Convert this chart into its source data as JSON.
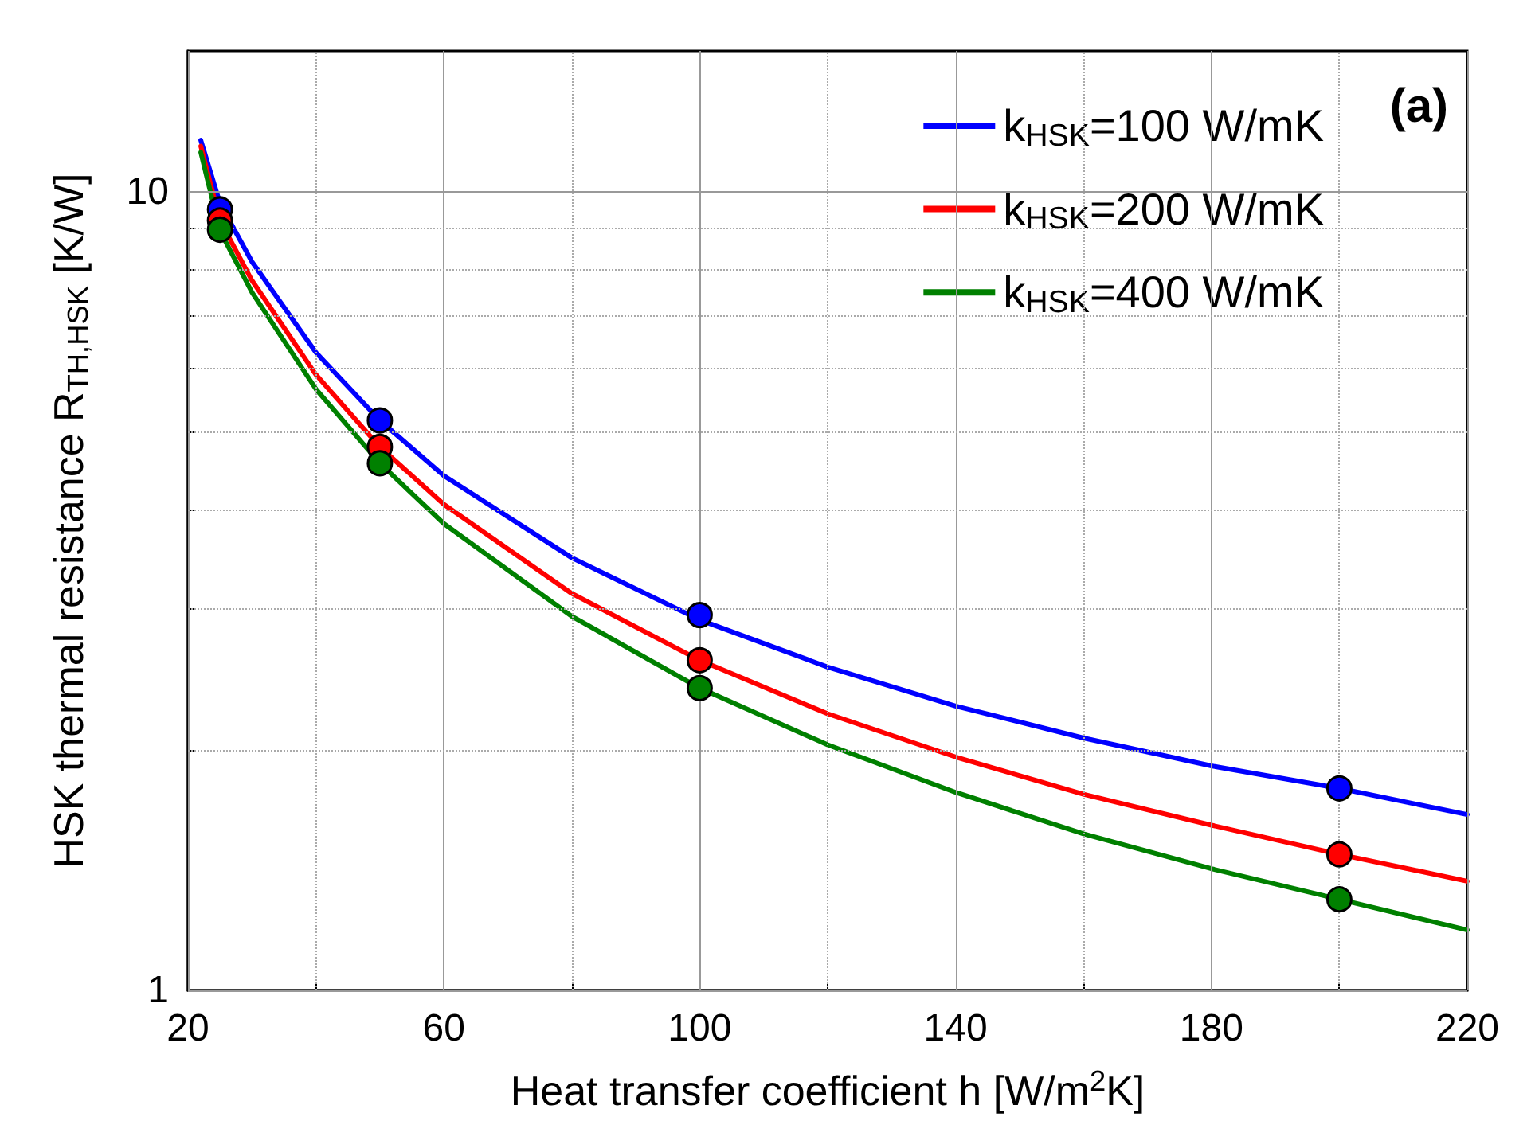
{
  "chart_data": {
    "type": "line",
    "xlabel": "Heat transfer coefficient h [W/m$^{2}$K]",
    "ylabel": "HSK thermal resistance R$_{TH,HSK}$ [K/W]",
    "annotations": [
      "(a)"
    ],
    "log": "y",
    "xlim": [
      20,
      220
    ],
    "xticks": [
      20,
      {
        "value": 40,
        "label": null
      },
      60,
      {
        "value": 80,
        "label": null
      },
      100,
      {
        "value": 120,
        "label": null
      },
      140,
      {
        "value": 160,
        "label": null
      },
      180,
      {
        "value": 200,
        "label": null
      },
      220
    ],
    "ylim": [
      1,
      15
    ],
    "yticks": [
      1,
      {
        "value": 2,
        "label": null
      },
      {
        "value": 3,
        "label": null
      },
      {
        "value": 4,
        "label": null
      },
      {
        "value": 5,
        "label": null
      },
      {
        "value": 6,
        "label": null
      },
      {
        "value": 7,
        "label": null
      },
      {
        "value": 8,
        "label": null
      },
      {
        "value": 9,
        "label": null
      },
      10
    ],
    "grid": true,
    "legend": "top right",
    "line_style": "solid",
    "series": [
      {
        "name": "k$_{HSK}$=100 W/mK",
        "type": "line",
        "marker": "none",
        "color": "#0000ff",
        "x": [
          22,
          25,
          30,
          40,
          50,
          60,
          80,
          100,
          120,
          140,
          160,
          180,
          200,
          220
        ],
        "values": [
          11.6,
          9.67,
          8.17,
          6.29,
          5.17,
          4.41,
          3.48,
          2.91,
          2.54,
          2.27,
          2.07,
          1.91,
          1.79,
          1.66
        ]
      },
      {
        "name": "k$_{HSK}$=200 W/mK",
        "type": "line",
        "marker": "none",
        "color": "#ff0000",
        "x": [
          22,
          25,
          30,
          40,
          50,
          60,
          80,
          100,
          120,
          140,
          160,
          180,
          200,
          220
        ],
        "values": [
          11.4,
          9.2,
          7.74,
          5.9,
          4.79,
          4.06,
          3.14,
          2.59,
          2.22,
          1.96,
          1.76,
          1.61,
          1.48,
          1.37
        ]
      },
      {
        "name": "k$_{HSK}$=400 W/mK",
        "type": "line",
        "marker": "none",
        "color": "#008000",
        "x": [
          22,
          25,
          30,
          40,
          50,
          60,
          80,
          100,
          120,
          140,
          160,
          180,
          200,
          220
        ],
        "values": [
          11.2,
          8.93,
          7.48,
          5.66,
          4.57,
          3.84,
          2.94,
          2.39,
          2.03,
          1.77,
          1.57,
          1.42,
          1.3,
          1.19
        ]
      },
      {
        "type": "scatter",
        "marker": "circle",
        "color": "#0000ff",
        "x": [
          25,
          50,
          100,
          200
        ],
        "values": [
          9.5,
          5.17,
          2.95,
          1.79
        ]
      },
      {
        "type": "scatter",
        "marker": "circle",
        "color": "#ff0000",
        "x": [
          25,
          50,
          100,
          200
        ],
        "values": [
          9.2,
          4.79,
          2.59,
          1.48
        ]
      },
      {
        "type": "scatter",
        "marker": "circle",
        "color": "#008000",
        "x": [
          25,
          50,
          100,
          200
        ],
        "values": [
          8.96,
          4.57,
          2.39,
          1.3
        ]
      }
    ]
  }
}
